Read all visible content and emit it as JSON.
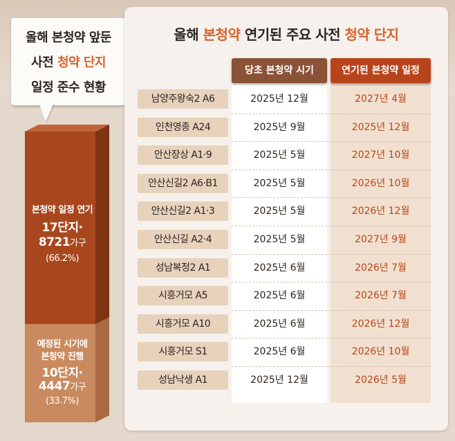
{
  "infobox": {
    "lines": [
      "올해 본청약 앞둔",
      "사전 ",
      "청약 단지",
      "일정 준수 현황"
    ]
  },
  "chart_data": {
    "type": "table",
    "title_parts": [
      "올해 ",
      "본청약",
      " 연기된 주요 사전 ",
      "청약 단지"
    ],
    "columns": [
      "당초 본청약 시기",
      "연기된 본청약 일정"
    ],
    "rows": [
      {
        "name": "남양주왕숙2 A6",
        "original": "2025년 12월",
        "delayed": "2027년 4월"
      },
      {
        "name": "인천영종 A24",
        "original": "2025년 9월",
        "delayed": "2025년 12월"
      },
      {
        "name": "안산장상 A1·9",
        "original": "2025년 5월",
        "delayed": "2027년 10월"
      },
      {
        "name": "안산신길2 A6·B1",
        "original": "2025년 5월",
        "delayed": "2026년 10월"
      },
      {
        "name": "안산신길2 A1·3",
        "original": "2025년 5월",
        "delayed": "2026년 12월"
      },
      {
        "name": "안산신길 A2·4",
        "original": "2025년 5월",
        "delayed": "2027년 9월"
      },
      {
        "name": "성남복정2 A1",
        "original": "2025년 6월",
        "delayed": "2026년 7월"
      },
      {
        "name": "시흥거모 A5",
        "original": "2025년 6월",
        "delayed": "2026년 7월"
      },
      {
        "name": "시흥거모 A10",
        "original": "2025년 6월",
        "delayed": "2026년 12월"
      },
      {
        "name": "시흥거모 S1",
        "original": "2025년 6월",
        "delayed": "2026년 10월"
      },
      {
        "name": "성남낙생 A1",
        "original": "2025년 12월",
        "delayed": "2026년 5월"
      }
    ],
    "stacked_bar": {
      "type": "bar",
      "segments": [
        {
          "label": "본청약 일정 연기",
          "count_text": "17단지·",
          "units_num": "8721",
          "units_suffix": "가구",
          "pct_text": "(66.2%)",
          "value": 66.2,
          "color": "#a8471e"
        },
        {
          "label_lines": [
            "예정된 시기에",
            "본청약 진행"
          ],
          "count_text": "10단지·",
          "units_num": "4447",
          "units_suffix": "가구",
          "pct_text": "(33.7%)",
          "value": 33.7,
          "color": "#c98a5f"
        }
      ]
    }
  },
  "colors": {
    "accent": "#d7612c",
    "header_original": "#8a5237",
    "header_delayed": "#b8441b",
    "delayed_text": "#b8441b",
    "name_cell": "#e7d2bc"
  }
}
